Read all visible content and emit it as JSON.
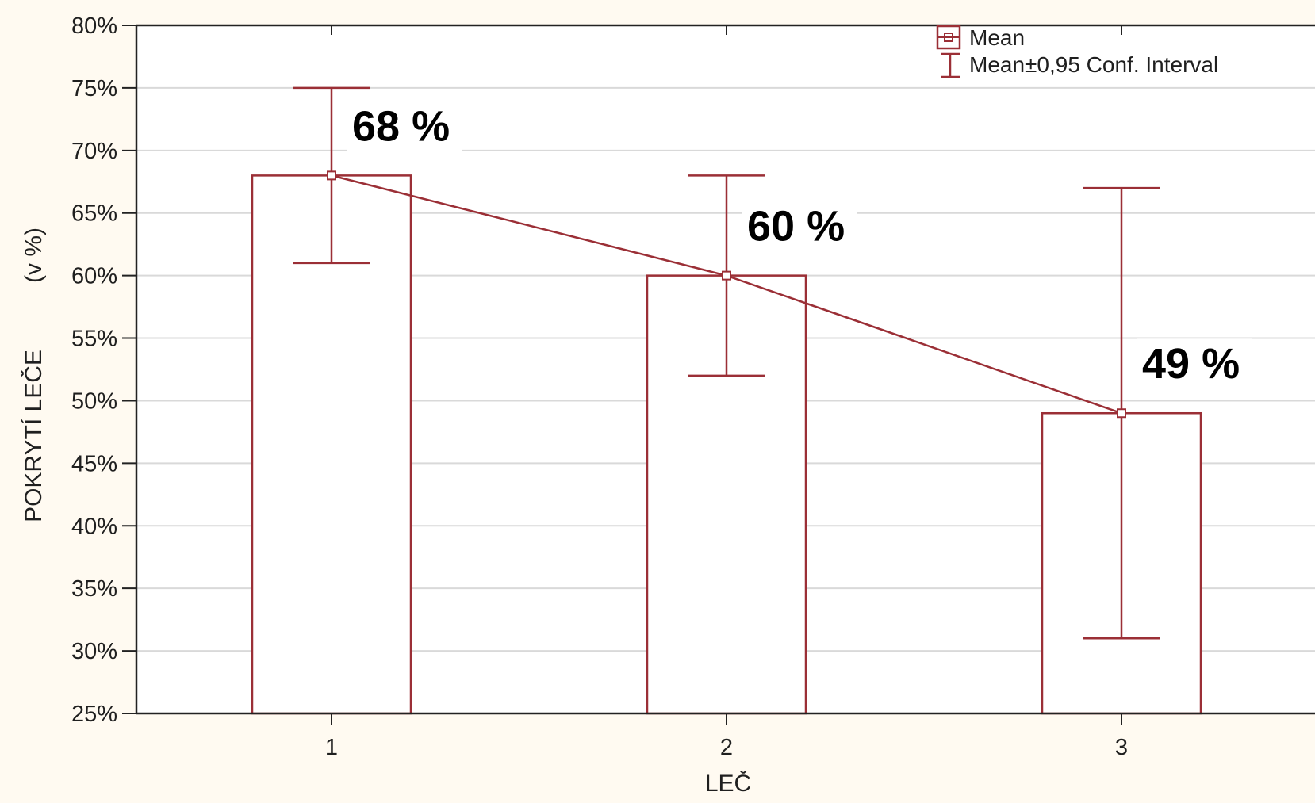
{
  "colors": {
    "series": "#9b2f36",
    "grid": "#d9d9d9",
    "axis": "#222222",
    "background": "#fffaf1",
    "bar_fill": "#ffffff"
  },
  "legend": {
    "mean_label": "Mean",
    "ci_label": "Mean±0,95 Conf. Interval",
    "placement": "top-right"
  },
  "chart_data": {
    "type": "bar",
    "categories": [
      "1",
      "2",
      "3"
    ],
    "series": [
      {
        "name": "Mean",
        "values": [
          68,
          60,
          49
        ],
        "ci_lower": [
          61,
          52,
          31
        ],
        "ci_upper": [
          75,
          68,
          67
        ]
      }
    ],
    "overlay_line": true,
    "value_labels": [
      "68 %",
      "60 %",
      "49 %"
    ],
    "xlabel": "LEČ",
    "ylabel_main": "POKRYTÍ LEČE",
    "ylabel_unit": "(v %)",
    "ylim": [
      25,
      80
    ],
    "yticks": [
      25,
      30,
      35,
      40,
      45,
      50,
      55,
      60,
      65,
      70,
      75,
      80
    ],
    "ytick_labels": [
      "25%",
      "30%",
      "35%",
      "40%",
      "45%",
      "50%",
      "55%",
      "60%",
      "65%",
      "70%",
      "75%",
      "80%"
    ],
    "grid": true
  }
}
